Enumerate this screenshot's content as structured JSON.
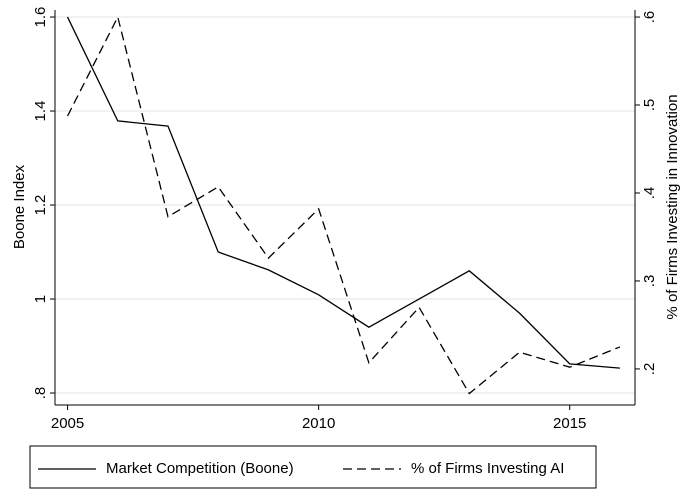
{
  "chart_data": {
    "type": "line",
    "x": [
      2005,
      2006,
      2007,
      2008,
      2009,
      2010,
      2011,
      2012,
      2013,
      2014,
      2015,
      2016
    ],
    "xlim": [
      2004.75,
      2016.3
    ],
    "xticks": [
      2005,
      2010,
      2015
    ],
    "ylabel": "Boone Index",
    "y2label": "% of Firms Investing in Innovation",
    "ylim": [
      0.7745,
      1.615
    ],
    "yticks": [
      {
        "value": 0.8,
        "label": ".8"
      },
      1,
      1.2,
      1.4,
      1.6
    ],
    "y2lim": [
      0.159,
      0.608
    ],
    "y2ticks": [
      {
        "value": 0.2,
        "label": ".2"
      },
      {
        "value": 0.3,
        "label": ".3"
      },
      {
        "value": 0.4,
        "label": ".4"
      },
      {
        "value": 0.5,
        "label": ".5"
      },
      {
        "value": 0.6,
        "label": ".6"
      }
    ],
    "grid": true,
    "series": [
      {
        "name": "Market Competition (Boone)",
        "color": "#000000",
        "dash": "solid",
        "axis": "y",
        "values": [
          1.6,
          1.379,
          1.368,
          1.1,
          1.062,
          1.009,
          0.94,
          1.0,
          1.06,
          0.97,
          0.862,
          0.853
        ]
      },
      {
        "name": "% of Firms Investing AI",
        "color": "#000000",
        "dash": "dashed",
        "axis": "y2",
        "values": [
          0.4875,
          0.6,
          0.373,
          0.407,
          0.326,
          0.382,
          0.207,
          0.27,
          0.172,
          0.219,
          0.202,
          0.225
        ]
      }
    ],
    "legend": "bottom"
  }
}
